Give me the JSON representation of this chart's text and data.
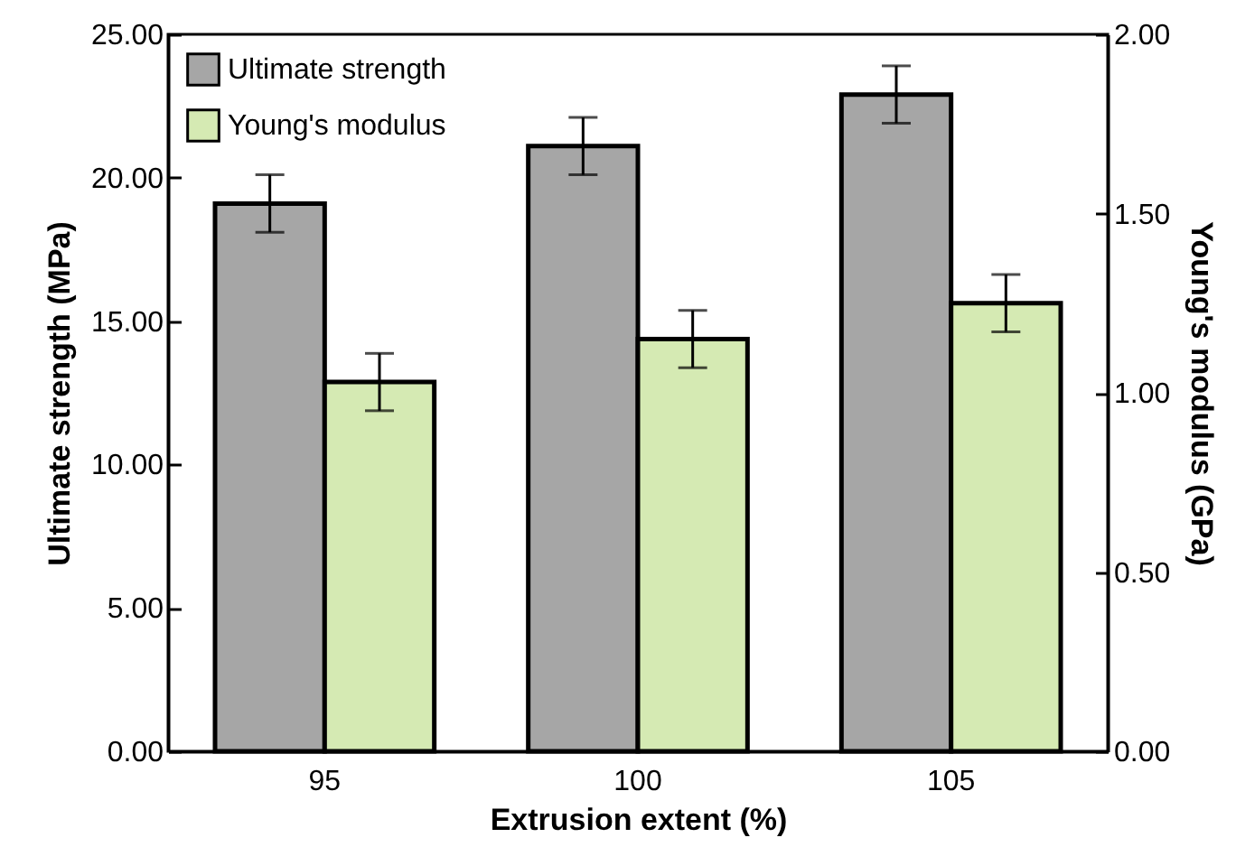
{
  "chart_data": {
    "type": "bar",
    "xlabel": "Extrusion extent (%)",
    "ylabel": "Ultimate strength (MPa)",
    "y2label": "Young's modulus (GPa)",
    "categories": [
      "95",
      "100",
      "105"
    ],
    "series": [
      {
        "name": "Ultimate strength",
        "color": "#a6a6a6",
        "values": [
          19.1,
          21.1,
          22.9
        ],
        "errors": [
          1.0,
          1.0,
          1.0
        ]
      },
      {
        "name": "Young's modulus",
        "color": "#d5eab3",
        "axis": "y2",
        "values": [
          1.03,
          1.15,
          1.25
        ],
        "errors": [
          0.08,
          0.08,
          0.08
        ]
      }
    ],
    "ylim": [
      0,
      25
    ],
    "yticks": [
      {
        "value": 0,
        "label": "0.00"
      },
      {
        "value": 5,
        "label": "5.00"
      },
      {
        "value": 10,
        "label": "10.00"
      },
      {
        "value": 15,
        "label": "15.00"
      },
      {
        "value": 20,
        "label": "20.00"
      },
      {
        "value": 25,
        "label": "25.00"
      }
    ],
    "y2lim": [
      0,
      2
    ],
    "y2ticks": [
      {
        "value": 0,
        "label": "0.00"
      },
      {
        "value": 0.5,
        "label": "0.50"
      },
      {
        "value": 1,
        "label": "1.00"
      },
      {
        "value": 1.5,
        "label": "1.50"
      },
      {
        "value": 2,
        "label": "2.00"
      }
    ],
    "legend": "top left",
    "grid": false
  }
}
